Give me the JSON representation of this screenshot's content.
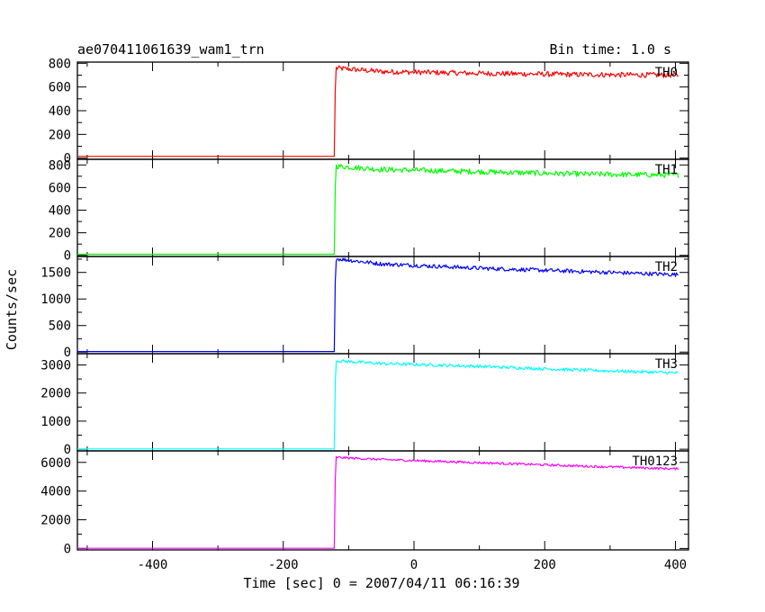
{
  "header": {
    "left": "ae070411061639_wam1_trn",
    "right": "Bin time: 1.0 s"
  },
  "chart_data": {
    "type": "line",
    "xlabel": "Time [sec] 0 = 2007/04/11 06:16:39",
    "ylabel": "Counts/sec",
    "xlim": [
      -515,
      420
    ],
    "xticks": [
      -400,
      -200,
      0,
      200,
      400
    ],
    "grid": false,
    "panels": [
      {
        "name": "TH0",
        "color": "#ff0000",
        "ylim": [
          -10,
          810
        ],
        "yticks": [
          0,
          200,
          400,
          600,
          800
        ],
        "onset": -122,
        "pre_level": 15,
        "points": [
          [
            -515,
            15
          ],
          [
            -122,
            15
          ],
          [
            -120,
            760
          ],
          [
            -50,
            730
          ],
          [
            100,
            715
          ],
          [
            250,
            705
          ],
          [
            400,
            700
          ]
        ],
        "noise": 22
      },
      {
        "name": "TH1",
        "color": "#00ff00",
        "ylim": [
          -10,
          850
        ],
        "yticks": [
          0,
          200,
          400,
          600,
          800
        ],
        "onset": -122,
        "pre_level": 10,
        "points": [
          [
            -515,
            10
          ],
          [
            -122,
            10
          ],
          [
            -120,
            790
          ],
          [
            -50,
            760
          ],
          [
            100,
            740
          ],
          [
            250,
            720
          ],
          [
            400,
            710
          ]
        ],
        "noise": 24
      },
      {
        "name": "TH2",
        "color": "#0000ff",
        "ylim": [
          -30,
          1800
        ],
        "yticks": [
          0,
          500,
          1000,
          1500
        ],
        "onset": -122,
        "pre_level": 10,
        "points": [
          [
            -515,
            10
          ],
          [
            -122,
            10
          ],
          [
            -120,
            1760
          ],
          [
            -50,
            1660
          ],
          [
            100,
            1580
          ],
          [
            250,
            1520
          ],
          [
            400,
            1460
          ]
        ],
        "noise": 38
      },
      {
        "name": "TH3",
        "color": "#00ffff",
        "ylim": [
          -60,
          3400
        ],
        "yticks": [
          0,
          1000,
          2000,
          3000
        ],
        "onset": -122,
        "pre_level": 10,
        "points": [
          [
            -515,
            10
          ],
          [
            -122,
            10
          ],
          [
            -120,
            3150
          ],
          [
            -50,
            3050
          ],
          [
            100,
            2950
          ],
          [
            250,
            2820
          ],
          [
            400,
            2720
          ]
        ],
        "noise": 55
      },
      {
        "name": "TH0123",
        "color": "#ff00ff",
        "ylim": [
          -100,
          6800
        ],
        "yticks": [
          0,
          2000,
          4000,
          6000
        ],
        "onset": -122,
        "pre_level": 10,
        "points": [
          [
            -515,
            10
          ],
          [
            -122,
            10
          ],
          [
            -120,
            6350
          ],
          [
            -50,
            6200
          ],
          [
            100,
            5980
          ],
          [
            250,
            5750
          ],
          [
            400,
            5550
          ]
        ],
        "noise": 80
      }
    ]
  }
}
